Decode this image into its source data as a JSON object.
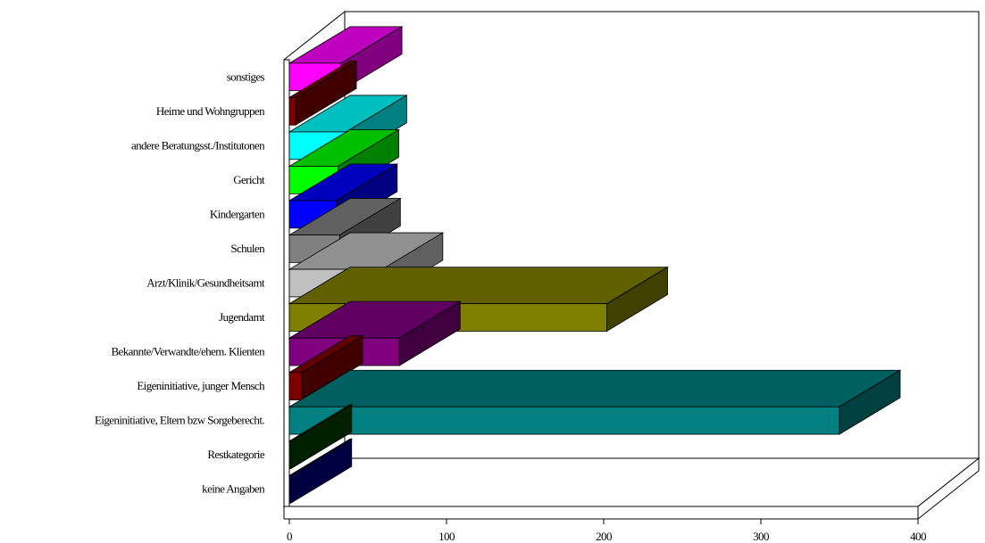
{
  "chart_data": {
    "type": "bar",
    "orientation": "horizontal",
    "three_d": true,
    "title": "",
    "xlabel": "",
    "ylabel": "",
    "xlim": [
      0,
      400
    ],
    "xticks": [
      "0",
      "100",
      "200",
      "300",
      "400"
    ],
    "grid": false,
    "legend": "none",
    "categories": [
      "sonstiges",
      "Heime und Wohngruppen",
      "andere Beratungsst./Institutonen",
      "Gericht",
      "Kindergarten",
      "Schulen",
      "Arzt/Klinik/Gesundheitsamt",
      "Jugendamt",
      "Bekannte/Verwandte/ehem. Klienten",
      "Eigeninitiative, junger Mensch",
      "Eigeninitiative, Eltern bzw Sorgeberecht.",
      "Restkategorie",
      "keine Angaben"
    ],
    "values": [
      33,
      4,
      36,
      31,
      30,
      32,
      59,
      202,
      70,
      8,
      350,
      1,
      1
    ],
    "colors": [
      "#FF00FF",
      "#800000",
      "#00FFFF",
      "#00FF00",
      "#0000FF",
      "#808080",
      "#C0C0C0",
      "#808000",
      "#800080",
      "#800000",
      "#008080",
      "#004000",
      "#000080"
    ]
  }
}
